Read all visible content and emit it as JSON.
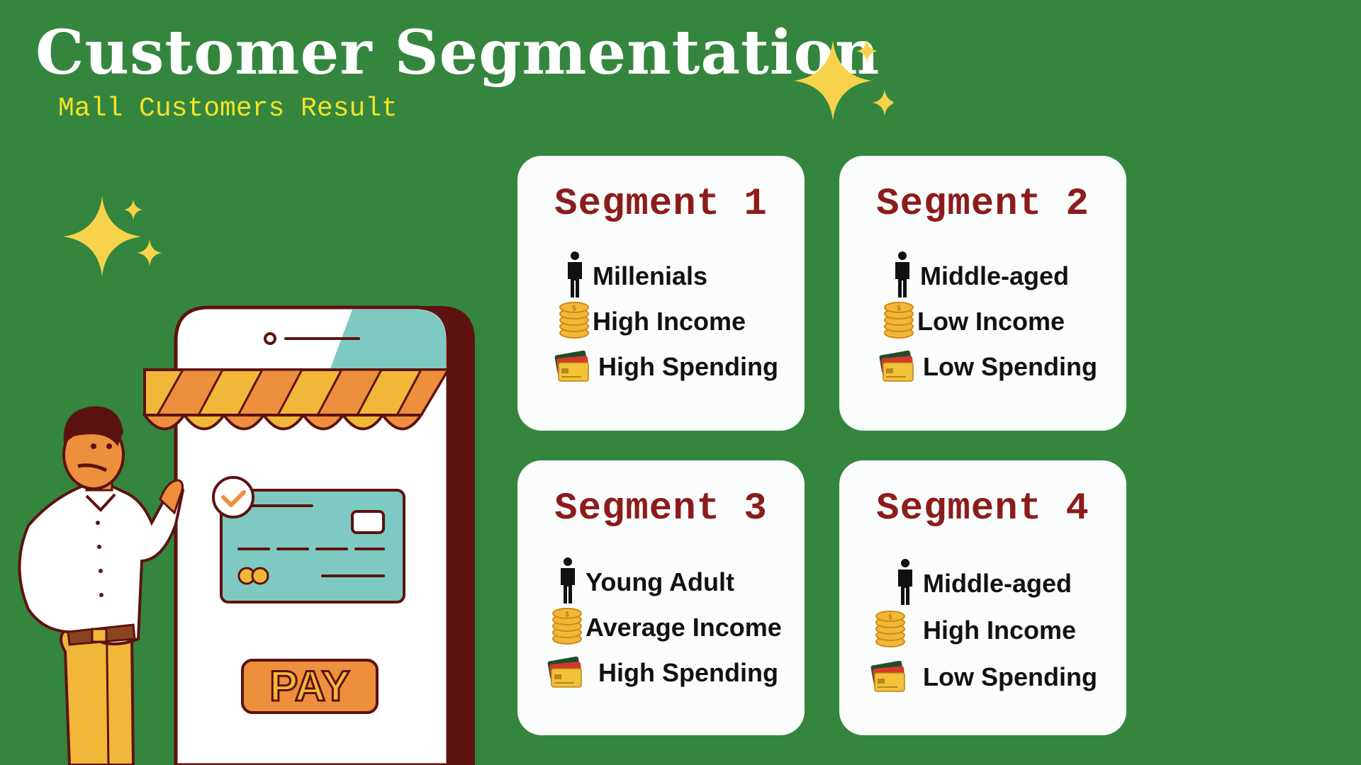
{
  "header": {
    "title": "Customer Segmentation",
    "subtitle": "Mall Customers Result"
  },
  "colors": {
    "background": "#34863e",
    "title": "#ffffff",
    "subtitle": "#f5e22a",
    "segment_title": "#8c1c1c",
    "card": "#fafdfb",
    "sparkle": "#f6d34a"
  },
  "illustration": {
    "pay_label": "PAY",
    "icons": [
      "person-icon",
      "coin-stack-icon",
      "credit-cards-icon"
    ]
  },
  "segments": [
    {
      "title": "Segment 1",
      "age": "Millenials",
      "income": "High Income",
      "spending": "High Spending"
    },
    {
      "title": "Segment 2",
      "age": "Middle-aged",
      "income": "Low Income",
      "spending": "Low Spending"
    },
    {
      "title": "Segment 3",
      "age": "Young Adult",
      "income": "Average Income",
      "spending": "High Spending"
    },
    {
      "title": "Segment 4",
      "age": "Middle-aged",
      "income": "High Income",
      "spending": "Low Spending"
    }
  ]
}
